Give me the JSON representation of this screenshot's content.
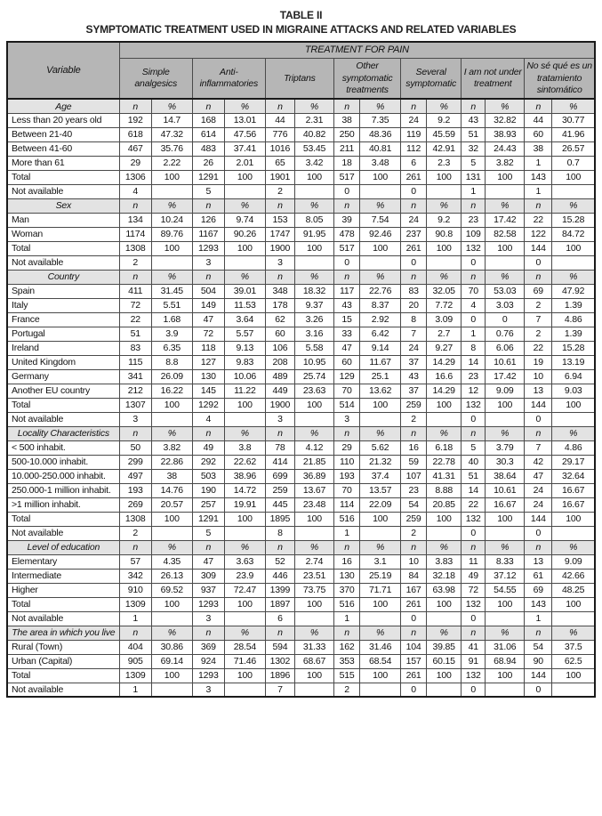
{
  "colors": {
    "header_bg": "#b6b6b6",
    "subheader_bg": "#e3e3e3",
    "border": "#4a4a4a"
  },
  "title": {
    "line1": "TABLE II",
    "line2": "SYMPTOMATIC TREATMENT USED IN MIGRAINE ATTACKS AND RELATED VARIABLES"
  },
  "table": {
    "variable_header": "Variable",
    "group_header": "TREATMENT FOR PAIN",
    "treatments": [
      "Simple analgesics",
      "Anti-inflammatories",
      "Triptans",
      "Other symptomatic treatments",
      "Several symptomatic",
      "I am not under treatment",
      "No sé qué es un tratamiento sintomático"
    ],
    "subcolumns": [
      "n",
      "%"
    ],
    "sections": [
      {
        "name": "Age",
        "rows": [
          {
            "label": "Less than 20 years old",
            "cells": [
              "192",
              "14.7",
              "168",
              "13.01",
              "44",
              "2.31",
              "38",
              "7.35",
              "24",
              "9.2",
              "43",
              "32.82",
              "44",
              "30.77"
            ]
          },
          {
            "label": "Between 21-40",
            "cells": [
              "618",
              "47.32",
              "614",
              "47.56",
              "776",
              "40.82",
              "250",
              "48.36",
              "119",
              "45.59",
              "51",
              "38.93",
              "60",
              "41.96"
            ]
          },
          {
            "label": "Between 41-60",
            "cells": [
              "467",
              "35.76",
              "483",
              "37.41",
              "1016",
              "53.45",
              "211",
              "40.81",
              "112",
              "42.91",
              "32",
              "24.43",
              "38",
              "26.57"
            ]
          },
          {
            "label": "More than 61",
            "cells": [
              "29",
              "2.22",
              "26",
              "2.01",
              "65",
              "3.42",
              "18",
              "3.48",
              "6",
              "2.3",
              "5",
              "3.82",
              "1",
              "0.7"
            ]
          },
          {
            "label": "Total",
            "cells": [
              "1306",
              "100",
              "1291",
              "100",
              "1901",
              "100",
              "517",
              "100",
              "261",
              "100",
              "131",
              "100",
              "143",
              "100"
            ]
          },
          {
            "label": "Not available",
            "cells": [
              "4",
              "",
              "5",
              "",
              "2",
              "",
              "0",
              "",
              "0",
              "",
              "1",
              "",
              "1",
              ""
            ]
          }
        ]
      },
      {
        "name": "Sex",
        "rows": [
          {
            "label": "Man",
            "cells": [
              "134",
              "10.24",
              "126",
              "9.74",
              "153",
              "8.05",
              "39",
              "7.54",
              "24",
              "9.2",
              "23",
              "17.42",
              "22",
              "15.28"
            ]
          },
          {
            "label": "Woman",
            "cells": [
              "1174",
              "89.76",
              "1167",
              "90.26",
              "1747",
              "91.95",
              "478",
              "92.46",
              "237",
              "90.8",
              "109",
              "82.58",
              "122",
              "84.72"
            ]
          },
          {
            "label": "Total",
            "cells": [
              "1308",
              "100",
              "1293",
              "100",
              "1900",
              "100",
              "517",
              "100",
              "261",
              "100",
              "132",
              "100",
              "144",
              "100"
            ]
          },
          {
            "label": "Not available",
            "cells": [
              "2",
              "",
              "3",
              "",
              "3",
              "",
              "0",
              "",
              "0",
              "",
              "0",
              "",
              "0",
              ""
            ]
          }
        ]
      },
      {
        "name": "Country",
        "rows": [
          {
            "label": "Spain",
            "cells": [
              "411",
              "31.45",
              "504",
              "39.01",
              "348",
              "18.32",
              "117",
              "22.76",
              "83",
              "32.05",
              "70",
              "53.03",
              "69",
              "47.92"
            ]
          },
          {
            "label": "Italy",
            "cells": [
              "72",
              "5.51",
              "149",
              "11.53",
              "178",
              "9.37",
              "43",
              "8.37",
              "20",
              "7.72",
              "4",
              "3.03",
              "2",
              "1.39"
            ]
          },
          {
            "label": "France",
            "cells": [
              "22",
              "1.68",
              "47",
              "3.64",
              "62",
              "3.26",
              "15",
              "2.92",
              "8",
              "3.09",
              "0",
              "0",
              "7",
              "4.86"
            ]
          },
          {
            "label": "Portugal",
            "cells": [
              "51",
              "3.9",
              "72",
              "5.57",
              "60",
              "3.16",
              "33",
              "6.42",
              "7",
              "2.7",
              "1",
              "0.76",
              "2",
              "1.39"
            ]
          },
          {
            "label": "Ireland",
            "cells": [
              "83",
              "6.35",
              "118",
              "9.13",
              "106",
              "5.58",
              "47",
              "9.14",
              "24",
              "9.27",
              "8",
              "6.06",
              "22",
              "15.28"
            ]
          },
          {
            "label": "United Kingdom",
            "cells": [
              "115",
              "8.8",
              "127",
              "9.83",
              "208",
              "10.95",
              "60",
              "11.67",
              "37",
              "14.29",
              "14",
              "10.61",
              "19",
              "13.19"
            ]
          },
          {
            "label": "Germany",
            "cells": [
              "341",
              "26.09",
              "130",
              "10.06",
              "489",
              "25.74",
              "129",
              "25.1",
              "43",
              "16.6",
              "23",
              "17.42",
              "10",
              "6.94"
            ]
          },
          {
            "label": "Another EU country",
            "cells": [
              "212",
              "16.22",
              "145",
              "11.22",
              "449",
              "23.63",
              "70",
              "13.62",
              "37",
              "14.29",
              "12",
              "9.09",
              "13",
              "9.03"
            ]
          },
          {
            "label": "Total",
            "cells": [
              "1307",
              "100",
              "1292",
              "100",
              "1900",
              "100",
              "514",
              "100",
              "259",
              "100",
              "132",
              "100",
              "144",
              "100"
            ]
          },
          {
            "label": "Not available",
            "cells": [
              "3",
              "",
              "4",
              "",
              "3",
              "",
              "3",
              "",
              "2",
              "",
              "0",
              "",
              "0",
              ""
            ]
          }
        ]
      },
      {
        "name": "Locality Characteristics",
        "rows": [
          {
            "label": "< 500 inhabit.",
            "cells": [
              "50",
              "3.82",
              "49",
              "3.8",
              "78",
              "4.12",
              "29",
              "5.62",
              "16",
              "6.18",
              "5",
              "3.79",
              "7",
              "4.86"
            ]
          },
          {
            "label": "500-10.000 inhabit.",
            "cells": [
              "299",
              "22.86",
              "292",
              "22.62",
              "414",
              "21.85",
              "110",
              "21.32",
              "59",
              "22.78",
              "40",
              "30.3",
              "42",
              "29.17"
            ]
          },
          {
            "label": "10.000-250.000 inhabit.",
            "cells": [
              "497",
              "38",
              "503",
              "38.96",
              "699",
              "36.89",
              "193",
              "37.4",
              "107",
              "41.31",
              "51",
              "38.64",
              "47",
              "32.64"
            ]
          },
          {
            "label": "250.000-1 million inhabit.",
            "cells": [
              "193",
              "14.76",
              "190",
              "14.72",
              "259",
              "13.67",
              "70",
              "13.57",
              "23",
              "8.88",
              "14",
              "10.61",
              "24",
              "16.67"
            ]
          },
          {
            "label": ">1 million inhabit.",
            "cells": [
              "269",
              "20.57",
              "257",
              "19.91",
              "445",
              "23.48",
              "114",
              "22.09",
              "54",
              "20.85",
              "22",
              "16.67",
              "24",
              "16.67"
            ]
          },
          {
            "label": "Total",
            "cells": [
              "1308",
              "100",
              "1291",
              "100",
              "1895",
              "100",
              "516",
              "100",
              "259",
              "100",
              "132",
              "100",
              "144",
              "100"
            ]
          },
          {
            "label": "Not available",
            "cells": [
              "2",
              "",
              "5",
              "",
              "8",
              "",
              "1",
              "",
              "2",
              "",
              "0",
              "",
              "0",
              ""
            ]
          }
        ]
      },
      {
        "name": "Level of education",
        "rows": [
          {
            "label": "Elementary",
            "cells": [
              "57",
              "4.35",
              "47",
              "3.63",
              "52",
              "2.74",
              "16",
              "3.1",
              "10",
              "3.83",
              "11",
              "8.33",
              "13",
              "9.09"
            ]
          },
          {
            "label": "Intermediate",
            "cells": [
              "342",
              "26.13",
              "309",
              "23.9",
              "446",
              "23.51",
              "130",
              "25.19",
              "84",
              "32.18",
              "49",
              "37.12",
              "61",
              "42.66"
            ]
          },
          {
            "label": "Higher",
            "cells": [
              "910",
              "69.52",
              "937",
              "72.47",
              "1399",
              "73.75",
              "370",
              "71.71",
              "167",
              "63.98",
              "72",
              "54.55",
              "69",
              "48.25"
            ]
          },
          {
            "label": "Total",
            "cells": [
              "1309",
              "100",
              "1293",
              "100",
              "1897",
              "100",
              "516",
              "100",
              "261",
              "100",
              "132",
              "100",
              "143",
              "100"
            ]
          },
          {
            "label": "Not available",
            "cells": [
              "1",
              "",
              "3",
              "",
              "6",
              "",
              "1",
              "",
              "0",
              "",
              "0",
              "",
              "1",
              ""
            ]
          }
        ]
      },
      {
        "name": "The area in which you live",
        "rows": [
          {
            "label": "Rural (Town)",
            "cells": [
              "404",
              "30.86",
              "369",
              "28.54",
              "594",
              "31.33",
              "162",
              "31.46",
              "104",
              "39.85",
              "41",
              "31.06",
              "54",
              "37.5"
            ]
          },
          {
            "label": "Urban (Capital)",
            "cells": [
              "905",
              "69.14",
              "924",
              "71.46",
              "1302",
              "68.67",
              "353",
              "68.54",
              "157",
              "60.15",
              "91",
              "68.94",
              "90",
              "62.5"
            ]
          },
          {
            "label": "Total",
            "cells": [
              "1309",
              "100",
              "1293",
              "100",
              "1896",
              "100",
              "515",
              "100",
              "261",
              "100",
              "132",
              "100",
              "144",
              "100"
            ]
          },
          {
            "label": "Not available",
            "cells": [
              "1",
              "",
              "3",
              "",
              "7",
              "",
              "2",
              "",
              "0",
              "",
              "0",
              "",
              "0",
              ""
            ]
          }
        ]
      }
    ]
  }
}
